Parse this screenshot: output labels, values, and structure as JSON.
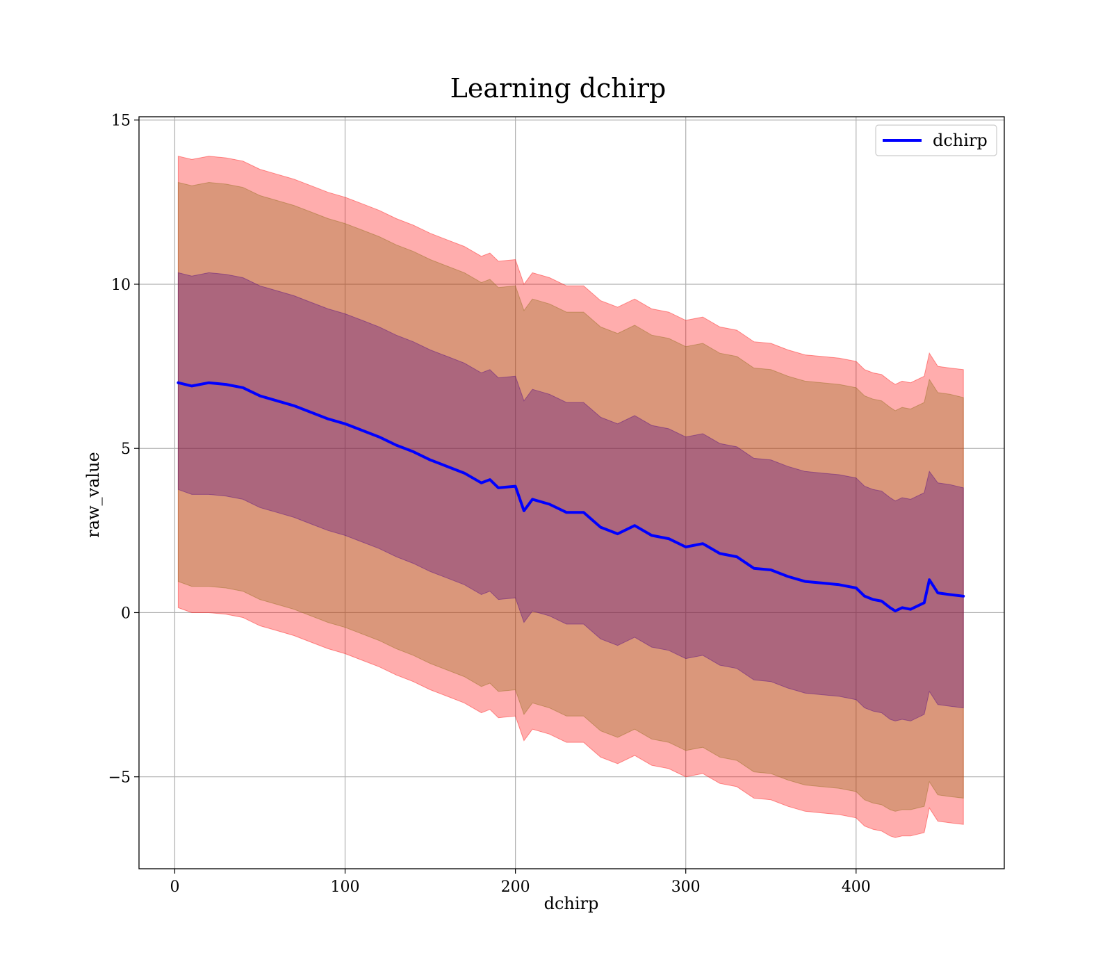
{
  "chart_data": {
    "type": "line",
    "title": "Learning dchirp",
    "xlabel": "dchirp",
    "ylabel": "raw_value",
    "xlim": [
      -21,
      487
    ],
    "ylim": [
      -7.8,
      15.1
    ],
    "xticks": [
      0,
      100,
      200,
      300,
      400
    ],
    "yticks": [
      15,
      10,
      5,
      0,
      -5
    ],
    "ytick_labels": [
      "15",
      "10",
      "5",
      "0",
      "−5"
    ],
    "grid": true,
    "legend": {
      "placement": "top-right",
      "entries": [
        "dchirp"
      ]
    },
    "colors": {
      "line": "#0000ff",
      "band_outer": "#ff0000",
      "band_middle": "#8b6914",
      "band_inner": "#4b0082"
    },
    "series": [
      {
        "name": "dchirp",
        "x": [
          2,
          10,
          20,
          30,
          40,
          50,
          60,
          70,
          80,
          90,
          100,
          110,
          120,
          130,
          140,
          150,
          160,
          170,
          180,
          185,
          190,
          200,
          205,
          210,
          220,
          230,
          240,
          250,
          260,
          270,
          280,
          290,
          300,
          310,
          320,
          330,
          340,
          350,
          360,
          370,
          380,
          390,
          400,
          405,
          410,
          415,
          420,
          423,
          427,
          432,
          440,
          443,
          448,
          455,
          463
        ],
        "y": [
          7.0,
          6.9,
          7.0,
          6.95,
          6.85,
          6.6,
          6.45,
          6.3,
          6.1,
          5.9,
          5.75,
          5.55,
          5.35,
          5.1,
          4.9,
          4.65,
          4.45,
          4.25,
          3.95,
          4.05,
          3.8,
          3.85,
          3.1,
          3.45,
          3.3,
          3.05,
          3.05,
          2.6,
          2.4,
          2.65,
          2.35,
          2.25,
          2.0,
          2.1,
          1.8,
          1.7,
          1.35,
          1.3,
          1.1,
          0.95,
          0.9,
          0.85,
          0.75,
          0.5,
          0.4,
          0.35,
          0.15,
          0.05,
          0.15,
          0.1,
          0.3,
          1.0,
          0.6,
          0.55,
          0.5
        ],
        "band_inner": {
          "lower": [
            3.75,
            3.6,
            3.6,
            3.55,
            3.45,
            3.2,
            3.05,
            2.9,
            2.7,
            2.5,
            2.35,
            2.15,
            1.95,
            1.7,
            1.5,
            1.25,
            1.05,
            0.85,
            0.55,
            0.65,
            0.4,
            0.45,
            -0.3,
            0.05,
            -0.1,
            -0.35,
            -0.35,
            -0.8,
            -1.0,
            -0.75,
            -1.05,
            -1.15,
            -1.4,
            -1.3,
            -1.6,
            -1.7,
            -2.05,
            -2.1,
            -2.3,
            -2.45,
            -2.5,
            -2.55,
            -2.65,
            -2.9,
            -3.0,
            -3.05,
            -3.25,
            -3.3,
            -3.25,
            -3.3,
            -3.1,
            -2.4,
            -2.8,
            -2.85,
            -2.9
          ],
          "upper": [
            10.35,
            10.25,
            10.35,
            10.3,
            10.2,
            9.95,
            9.8,
            9.65,
            9.45,
            9.25,
            9.1,
            8.9,
            8.7,
            8.45,
            8.25,
            8.0,
            7.8,
            7.6,
            7.3,
            7.4,
            7.15,
            7.2,
            6.45,
            6.8,
            6.65,
            6.4,
            6.4,
            5.95,
            5.75,
            6.0,
            5.7,
            5.6,
            5.35,
            5.45,
            5.15,
            5.05,
            4.7,
            4.65,
            4.45,
            4.3,
            4.25,
            4.2,
            4.1,
            3.85,
            3.75,
            3.7,
            3.5,
            3.4,
            3.5,
            3.45,
            3.65,
            4.3,
            3.95,
            3.9,
            3.8
          ]
        },
        "band_middle": {
          "lower": [
            0.95,
            0.8,
            0.8,
            0.75,
            0.65,
            0.4,
            0.25,
            0.1,
            -0.1,
            -0.3,
            -0.45,
            -0.65,
            -0.85,
            -1.1,
            -1.3,
            -1.55,
            -1.75,
            -1.95,
            -2.25,
            -2.15,
            -2.4,
            -2.35,
            -3.1,
            -2.75,
            -2.9,
            -3.15,
            -3.15,
            -3.6,
            -3.8,
            -3.55,
            -3.85,
            -3.95,
            -4.2,
            -4.1,
            -4.4,
            -4.5,
            -4.85,
            -4.9,
            -5.1,
            -5.25,
            -5.3,
            -5.35,
            -5.45,
            -5.7,
            -5.8,
            -5.85,
            -6.0,
            -6.05,
            -6.0,
            -6.0,
            -5.9,
            -5.15,
            -5.55,
            -5.6,
            -5.65
          ],
          "upper": [
            13.1,
            13.0,
            13.1,
            13.05,
            12.95,
            12.7,
            12.55,
            12.4,
            12.2,
            12.0,
            11.85,
            11.65,
            11.45,
            11.2,
            11.0,
            10.75,
            10.55,
            10.35,
            10.05,
            10.15,
            9.9,
            9.95,
            9.2,
            9.55,
            9.4,
            9.15,
            9.15,
            8.7,
            8.5,
            8.75,
            8.45,
            8.35,
            8.1,
            8.2,
            7.9,
            7.8,
            7.45,
            7.4,
            7.2,
            7.05,
            7.0,
            6.95,
            6.85,
            6.6,
            6.5,
            6.45,
            6.25,
            6.15,
            6.25,
            6.2,
            6.4,
            7.1,
            6.7,
            6.65,
            6.55
          ]
        },
        "band_outer": {
          "lower": [
            0.15,
            0.0,
            0.0,
            -0.05,
            -0.15,
            -0.4,
            -0.55,
            -0.7,
            -0.9,
            -1.1,
            -1.25,
            -1.45,
            -1.65,
            -1.9,
            -2.1,
            -2.35,
            -2.55,
            -2.75,
            -3.05,
            -2.95,
            -3.2,
            -3.15,
            -3.9,
            -3.55,
            -3.7,
            -3.95,
            -3.95,
            -4.4,
            -4.6,
            -4.35,
            -4.65,
            -4.75,
            -5.0,
            -4.9,
            -5.2,
            -5.3,
            -5.65,
            -5.7,
            -5.9,
            -6.05,
            -6.1,
            -6.15,
            -6.25,
            -6.5,
            -6.6,
            -6.65,
            -6.8,
            -6.85,
            -6.8,
            -6.8,
            -6.7,
            -5.95,
            -6.35,
            -6.4,
            -6.45
          ],
          "upper": [
            13.9,
            13.8,
            13.9,
            13.85,
            13.75,
            13.5,
            13.35,
            13.2,
            13.0,
            12.8,
            12.65,
            12.45,
            12.25,
            12.0,
            11.8,
            11.55,
            11.35,
            11.15,
            10.85,
            10.95,
            10.7,
            10.75,
            10.0,
            10.35,
            10.2,
            9.95,
            9.95,
            9.5,
            9.3,
            9.55,
            9.25,
            9.15,
            8.9,
            9.0,
            8.7,
            8.6,
            8.25,
            8.2,
            8.0,
            7.85,
            7.8,
            7.75,
            7.65,
            7.4,
            7.3,
            7.25,
            7.05,
            6.95,
            7.05,
            7.0,
            7.2,
            7.9,
            7.5,
            7.45,
            7.4
          ]
        }
      }
    ]
  }
}
